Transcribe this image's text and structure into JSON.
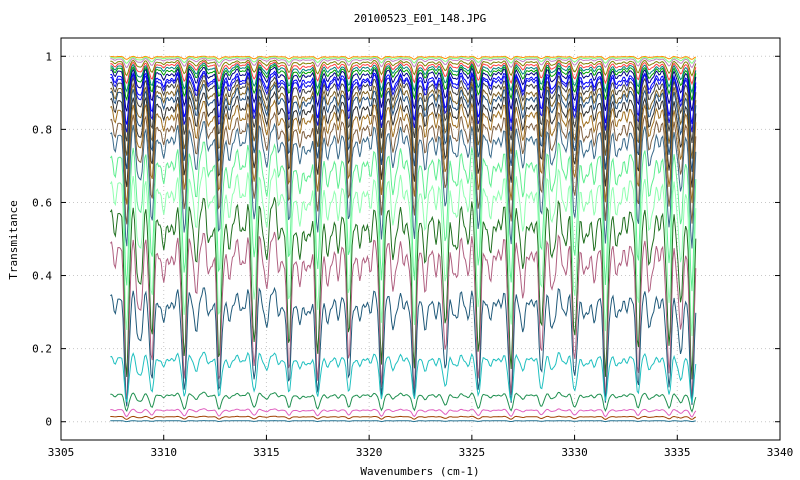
{
  "chart_data": {
    "type": "line",
    "title": "20100523_E01_148.JPG",
    "xlabel": "Wavenumbers (cm-1)",
    "ylabel": "Transmitance",
    "xlim": [
      3305,
      3340
    ],
    "ylim": [
      -0.05,
      1.05
    ],
    "xticks": [
      3305,
      3310,
      3315,
      3320,
      3325,
      3330,
      3335,
      3340
    ],
    "yticks": [
      0,
      0.2,
      0.4,
      0.6,
      0.8,
      1
    ],
    "ytick_labels": [
      "0",
      "0.2",
      "0.4",
      "0.6",
      "0.8",
      "1"
    ],
    "grid": true,
    "legend": "none",
    "x_range_data": [
      3307.4,
      3335.9
    ],
    "absorption_lines_x": [
      3308.2,
      3309.4,
      3311.0,
      3312.7,
      3314.4,
      3316.1,
      3317.5,
      3319.0,
      3320.6,
      3322.2,
      3323.7,
      3325.3,
      3326.9,
      3328.4,
      3330.0,
      3331.5,
      3333.1,
      3334.6,
      3335.7
    ],
    "series": [
      {
        "baseline": 1.0,
        "depth": 0.01,
        "color": "#ff8c00"
      },
      {
        "baseline": 0.998,
        "depth": 0.02,
        "color": "#7fff7f"
      },
      {
        "baseline": 0.995,
        "depth": 0.03,
        "color": "#c080c0"
      },
      {
        "baseline": 0.99,
        "depth": 0.05,
        "color": "#808000"
      },
      {
        "baseline": 0.985,
        "depth": 0.07,
        "color": "#ff4040"
      },
      {
        "baseline": 0.98,
        "depth": 0.09,
        "color": "#008080"
      },
      {
        "baseline": 0.975,
        "depth": 0.11,
        "color": "#00a000"
      },
      {
        "baseline": 0.97,
        "depth": 0.14,
        "color": "#000080"
      },
      {
        "baseline": 0.96,
        "depth": 0.17,
        "color": "#0000ff"
      },
      {
        "baseline": 0.955,
        "depth": 0.19,
        "color": "#1010e0"
      },
      {
        "baseline": 0.945,
        "depth": 0.21,
        "color": "#404040"
      },
      {
        "baseline": 0.93,
        "depth": 0.24,
        "color": "#806020"
      },
      {
        "baseline": 0.92,
        "depth": 0.27,
        "color": "#205080"
      },
      {
        "baseline": 0.9,
        "depth": 0.3,
        "color": "#303030"
      },
      {
        "baseline": 0.88,
        "depth": 0.33,
        "color": "#a07020"
      },
      {
        "baseline": 0.85,
        "depth": 0.36,
        "color": "#806040"
      },
      {
        "baseline": 0.82,
        "depth": 0.4,
        "color": "#3a6a8a"
      },
      {
        "baseline": 0.76,
        "depth": 0.46,
        "color": "#60ee90"
      },
      {
        "baseline": 0.69,
        "depth": 0.52,
        "color": "#90ffb0"
      },
      {
        "baseline": 0.61,
        "depth": 0.57,
        "color": "#207020"
      },
      {
        "baseline": 0.52,
        "depth": 0.54,
        "color": "#b06080"
      },
      {
        "baseline": 0.37,
        "depth": 0.38,
        "color": "#205a7a"
      },
      {
        "baseline": 0.19,
        "depth": 0.16,
        "color": "#20c0c0"
      },
      {
        "baseline": 0.08,
        "depth": 0.06,
        "color": "#209050"
      },
      {
        "baseline": 0.035,
        "depth": 0.025,
        "color": "#e060c0"
      },
      {
        "baseline": 0.015,
        "depth": 0.01,
        "color": "#a04000"
      },
      {
        "baseline": 0.003,
        "depth": 0.003,
        "color": "#207090"
      }
    ]
  }
}
